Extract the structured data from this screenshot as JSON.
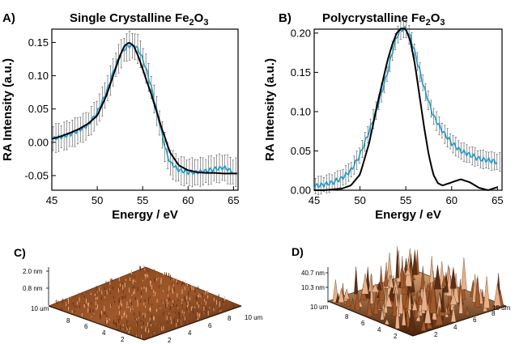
{
  "panels": {
    "a": {
      "letter": "A)",
      "title_main": "Single Crystalline Fe",
      "title_sub1": "2",
      "title_mid": "O",
      "title_sub2": "3"
    },
    "b": {
      "letter": "B)",
      "title_main": "Polycrystalline Fe",
      "title_sub1": "2",
      "title_mid": "O",
      "title_sub2": "3"
    },
    "c": {
      "letter": "C)",
      "z_top": "2.0 nm",
      "z_mid": "0.8 nm",
      "ax_left": "10 um",
      "ax_right": "10 um",
      "ticks_left": [
        "8",
        "6",
        "4",
        "2"
      ],
      "ticks_right": [
        "2",
        "4",
        "6",
        "8"
      ]
    },
    "d": {
      "letter": "D)",
      "z_top": "40.7 nm",
      "z_mid": "10.3 nm",
      "ax_left": "10 um",
      "ax_right": "10 um",
      "ticks_left": [
        "8",
        "6",
        "4",
        "2"
      ],
      "ticks_right": [
        "2",
        "4",
        "6",
        "8"
      ]
    }
  },
  "colors": {
    "experiment": "#1f9bc8",
    "error_bars": "#555555",
    "simulation": "#000000",
    "afm_dark": "#5a2e12",
    "afm_mid": "#a0582a",
    "afm_light": "#e8b088"
  },
  "chart_data": [
    {
      "type": "line",
      "title": "Single Crystalline Fe2O3",
      "xlabel": "Energy / eV",
      "ylabel": "RA Intensity (a.u.)",
      "xlim": [
        45,
        65.5
      ],
      "ylim": [
        -0.072,
        0.17
      ],
      "xticks": [
        45,
        50,
        55,
        60,
        65
      ],
      "yticks": [
        -0.05,
        0.0,
        0.05,
        0.1,
        0.15
      ],
      "ytick_labels": [
        "-0.05",
        "0.00",
        "0.05",
        "0.10",
        "0.15"
      ],
      "series": [
        {
          "role": "experiment",
          "x": [
            45,
            46,
            47,
            48,
            49,
            50,
            51,
            52,
            52.5,
            53,
            53.5,
            54,
            54.5,
            55,
            55.5,
            56,
            56.5,
            57,
            57.5,
            58,
            59,
            60,
            61,
            62,
            63,
            64,
            65
          ],
          "y": [
            0.005,
            0.008,
            0.012,
            0.018,
            0.026,
            0.045,
            0.075,
            0.115,
            0.13,
            0.14,
            0.145,
            0.145,
            0.14,
            0.125,
            0.105,
            0.08,
            0.05,
            0.02,
            -0.01,
            -0.03,
            -0.042,
            -0.045,
            -0.045,
            -0.043,
            -0.04,
            -0.038,
            -0.045
          ],
          "error": 0.022
        },
        {
          "role": "simulation",
          "x": [
            45,
            46,
            47,
            48,
            49,
            50,
            51,
            52,
            52.5,
            53,
            53.5,
            54,
            54.5,
            55,
            56,
            57,
            58,
            59,
            60,
            61,
            62,
            63,
            64,
            65,
            65.5
          ],
          "y": [
            0.005,
            0.009,
            0.014,
            0.02,
            0.028,
            0.04,
            0.07,
            0.11,
            0.13,
            0.145,
            0.15,
            0.145,
            0.13,
            0.11,
            0.07,
            0.025,
            -0.015,
            -0.035,
            -0.042,
            -0.045,
            -0.046,
            -0.046,
            -0.047,
            -0.047,
            -0.047
          ]
        }
      ]
    },
    {
      "type": "line",
      "title": "Polycrystalline Fe2O3",
      "xlabel": "Energy / eV",
      "ylabel": "RA Intensity (a.u.)",
      "xlim": [
        45,
        65.5
      ],
      "ylim": [
        0.0,
        0.205
      ],
      "xticks": [
        45,
        50,
        55,
        60,
        65
      ],
      "yticks": [
        0.0,
        0.05,
        0.1,
        0.15,
        0.2
      ],
      "ytick_labels": [
        "0.00",
        "0.05",
        "0.10",
        "0.15",
        "0.20"
      ],
      "series": [
        {
          "role": "experiment",
          "x": [
            45,
            46,
            47,
            48,
            49,
            50,
            51,
            52,
            53,
            53.5,
            54,
            54.5,
            55,
            55.5,
            56,
            57,
            58,
            59,
            60,
            61,
            62,
            63,
            64,
            65
          ],
          "y": [
            0.005,
            0.007,
            0.01,
            0.015,
            0.025,
            0.045,
            0.075,
            0.11,
            0.15,
            0.175,
            0.195,
            0.205,
            0.205,
            0.195,
            0.175,
            0.13,
            0.095,
            0.075,
            0.06,
            0.05,
            0.045,
            0.04,
            0.038,
            0.036
          ],
          "error": 0.012
        },
        {
          "role": "simulation",
          "x": [
            45,
            46,
            47,
            48,
            49,
            50,
            51,
            52,
            53,
            53.5,
            54,
            54.5,
            55,
            55.5,
            56,
            56.5,
            57,
            57.5,
            58,
            58.5,
            59,
            60,
            61,
            62,
            63,
            64,
            65
          ],
          "y": [
            0.0,
            0.0,
            0.001,
            0.002,
            0.006,
            0.02,
            0.06,
            0.115,
            0.165,
            0.185,
            0.2,
            0.206,
            0.205,
            0.19,
            0.16,
            0.12,
            0.08,
            0.045,
            0.02,
            0.009,
            0.006,
            0.01,
            0.014,
            0.01,
            0.003,
            0.0,
            0.004
          ]
        }
      ]
    }
  ]
}
